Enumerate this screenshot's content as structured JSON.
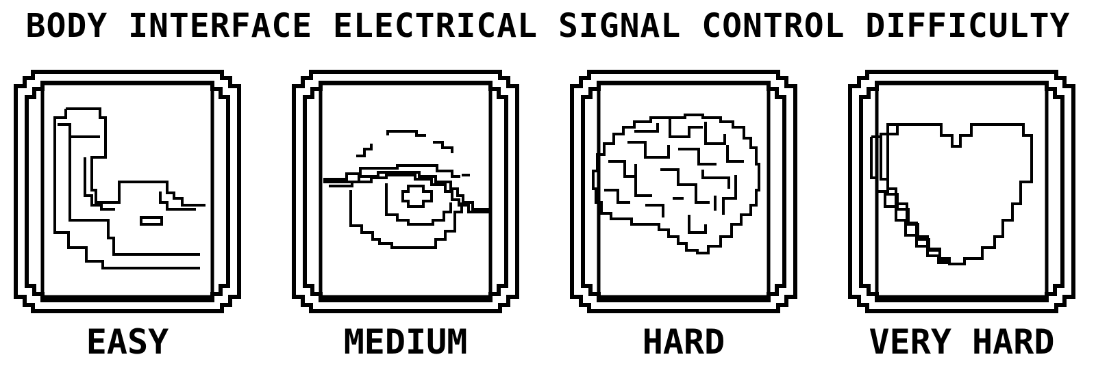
{
  "title": "BODY INTERFACE ELECTRICAL SIGNAL CONTROL DIFFICULTY",
  "panels": [
    {
      "label": "EASY",
      "icon": "flexed-arm-icon"
    },
    {
      "label": "MEDIUM",
      "icon": "eye-icon"
    },
    {
      "label": "HARD",
      "icon": "brain-icon"
    },
    {
      "label": "VERY HARD",
      "icon": "heart-icon"
    }
  ],
  "colors": {
    "ink": "#000000",
    "background": "#ffffff"
  }
}
